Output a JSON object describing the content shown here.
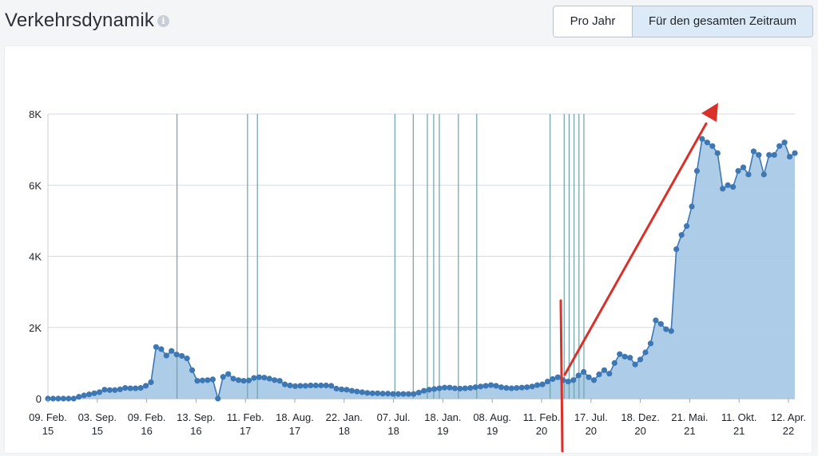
{
  "header": {
    "title": "Verkehrsdynamik",
    "info_icon": "info-icon",
    "toggle": {
      "per_year_label": "Pro Jahr",
      "all_time_label": "Für den gesamten Zeitraum",
      "selected": "Für den gesamten Zeitraum"
    }
  },
  "colors": {
    "line": "#3d78b4",
    "area": "#a9c9e6",
    "event_line": "#6fa1a8",
    "annotation": "#d9312a"
  },
  "chart_data": {
    "type": "area",
    "title": "",
    "xlabel": "",
    "ylabel": "",
    "ylim": [
      0,
      8000
    ],
    "grid": true,
    "y_ticks": [
      {
        "value": 0,
        "label": "0"
      },
      {
        "value": 2000,
        "label": "2K"
      },
      {
        "value": 4000,
        "label": "4K"
      },
      {
        "value": 6000,
        "label": "6K"
      },
      {
        "value": 8000,
        "label": "8K"
      }
    ],
    "x_ticks": [
      {
        "index": 0,
        "line1": "09. Feb.",
        "line2": "15"
      },
      {
        "index": 7,
        "line1": "03. Sep.",
        "line2": "15"
      },
      {
        "index": 14,
        "line1": "09. Feb.",
        "line2": "16"
      },
      {
        "index": 21,
        "line1": "13. Sep.",
        "line2": "16"
      },
      {
        "index": 28,
        "line1": "11. Feb.",
        "line2": "17"
      },
      {
        "index": 35,
        "line1": "18. Aug.",
        "line2": "17"
      },
      {
        "index": 42,
        "line1": "22. Jan.",
        "line2": "18"
      },
      {
        "index": 49,
        "line1": "07. Jul.",
        "line2": "18"
      },
      {
        "index": 56,
        "line1": "18. Jan.",
        "line2": "19"
      },
      {
        "index": 63,
        "line1": "08. Aug.",
        "line2": "19"
      },
      {
        "index": 70,
        "line1": "11. Feb.",
        "line2": "20"
      },
      {
        "index": 77,
        "line1": "17. Jul.",
        "line2": "20"
      },
      {
        "index": 84,
        "line1": "18. Dez.",
        "line2": "20"
      },
      {
        "index": 91,
        "line1": "21. Mai.",
        "line2": "21"
      },
      {
        "index": 98,
        "line1": "11. Okt.",
        "line2": "21"
      },
      {
        "index": 105,
        "line1": "12. Apr.",
        "line2": "22"
      }
    ],
    "event_markers": [
      18.3,
      28.3,
      29.7,
      49.2,
      51.8,
      53.8,
      54.7,
      55.5,
      58.2,
      60.8,
      71.2,
      73.2,
      73.9,
      74.6,
      75.3,
      76.0
    ],
    "series": [
      {
        "values": [
          0,
          0,
          0,
          0,
          0,
          0,
          50,
          90,
          120,
          150,
          180,
          250,
          240,
          240,
          260,
          300,
          290,
          290,
          300,
          360,
          460,
          1450,
          1390,
          1210,
          1340,
          1240,
          1200,
          1130,
          800,
          500,
          510,
          520,
          540,
          0,
          610,
          690,
          560,
          520,
          500,
          510,
          580,
          600,
          590,
          560,
          520,
          500,
          400,
          370,
          350,
          360,
          360,
          370,
          370,
          370,
          370,
          360,
          280,
          260,
          250,
          220,
          200,
          180,
          160,
          150,
          150,
          140,
          140,
          130,
          130,
          130,
          130,
          130,
          170,
          220,
          250,
          270,
          290,
          310,
          310,
          290,
          280,
          290,
          300,
          320,
          340,
          360,
          380,
          360,
          320,
          300,
          290,
          300,
          310,
          320,
          340,
          380,
          400,
          480,
          550,
          600,
          520,
          480,
          520,
          650,
          750,
          600,
          520,
          680,
          800,
          700,
          1000,
          1250,
          1180,
          1150,
          960,
          1100,
          1300,
          1550,
          2200,
          2100,
          1950,
          1900,
          4200,
          4600,
          4850,
          5400,
          6400,
          7300,
          7200,
          7100,
          6900,
          5900,
          6000,
          5950,
          6400,
          6500,
          6300,
          6950,
          6850,
          6300,
          6850,
          6850,
          7100,
          7200,
          6800,
          6900
        ]
      }
    ]
  }
}
